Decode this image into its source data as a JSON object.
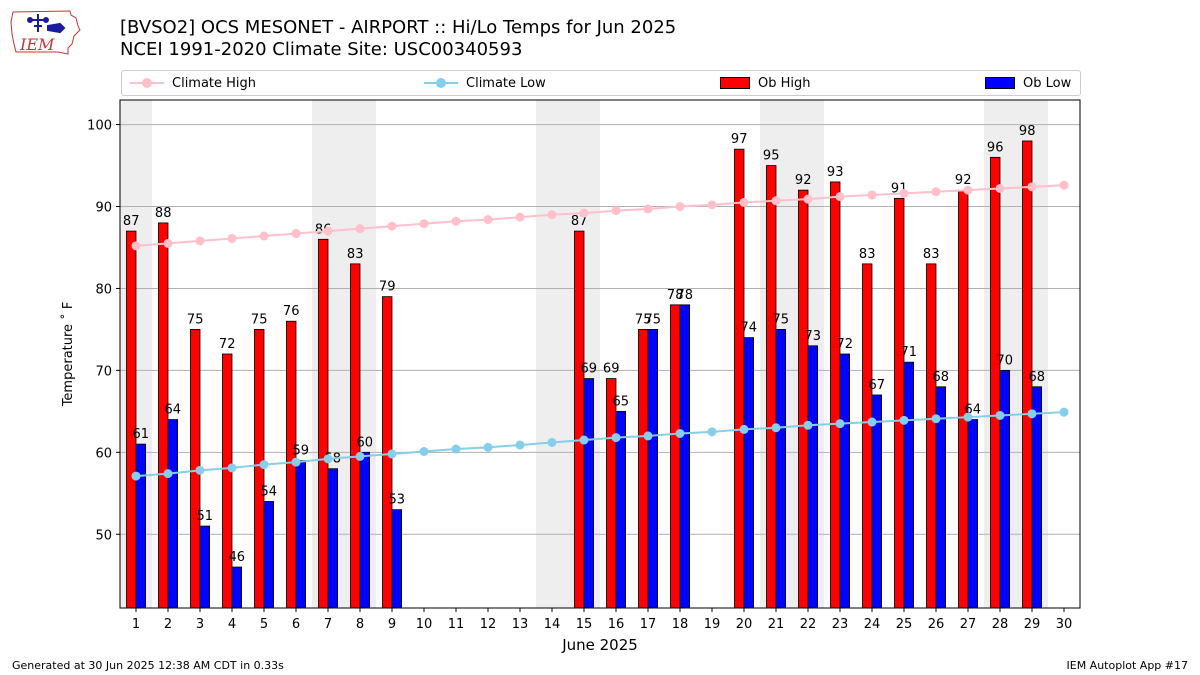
{
  "title_line1": "[BVSO2] OCS MESONET - AIRPORT :: Hi/Lo Temps for Jun 2025",
  "title_line2": "NCEI 1991-2020 Climate Site: USC00340593",
  "logo_text": "IEM",
  "footer_left": "Generated at 30 Jun 2025 12:38 AM CDT in 0.33s",
  "footer_right": "IEM Autoplot App #17",
  "colors": {
    "ob_high": "#ff0000",
    "ob_low": "#0000ff",
    "climate_high": "#ffc0cb",
    "climate_low": "#87ceeb",
    "weekend_shade": "#eeeeee",
    "grid": "#b0b0b0"
  },
  "chart_data": {
    "type": "bar",
    "xlabel": "June 2025",
    "ylabel": "Temperature ˚ F",
    "xlim": [
      0.5,
      30.5
    ],
    "ylim": [
      41,
      103
    ],
    "yticks": [
      50,
      60,
      70,
      80,
      90,
      100
    ],
    "grid": "horizontal",
    "legend_position": "top",
    "legend": [
      "Climate High",
      "Climate Low",
      "Ob High",
      "Ob Low"
    ],
    "days": [
      1,
      2,
      3,
      4,
      5,
      6,
      7,
      8,
      9,
      10,
      11,
      12,
      13,
      14,
      15,
      16,
      17,
      18,
      19,
      20,
      21,
      22,
      23,
      24,
      25,
      26,
      27,
      28,
      29,
      30
    ],
    "shaded_days": [
      1,
      7,
      8,
      14,
      15,
      21,
      22,
      28,
      29
    ],
    "ob_high": [
      87,
      88,
      75,
      72,
      75,
      76,
      86,
      83,
      79,
      null,
      null,
      null,
      null,
      null,
      87,
      69,
      75,
      78,
      null,
      97,
      95,
      92,
      93,
      83,
      91,
      83,
      92,
      96,
      98,
      null
    ],
    "ob_low": [
      61,
      64,
      51,
      46,
      54,
      59,
      58,
      60,
      53,
      null,
      null,
      null,
      null,
      null,
      69,
      65,
      75,
      78,
      null,
      74,
      75,
      73,
      72,
      67,
      71,
      68,
      64,
      70,
      68,
      null
    ],
    "ob_high_labels": [
      "87",
      "88",
      "75",
      "72",
      "75",
      "76",
      "86",
      "83",
      "79",
      "",
      "",
      "",
      "",
      "",
      "87",
      "69",
      "75",
      "78",
      "",
      "97",
      "95",
      "92",
      "93",
      "83",
      "91",
      "83",
      "92",
      "96",
      "98",
      ""
    ],
    "ob_low_labels": [
      "61",
      "64",
      "51",
      "46",
      "54",
      "59",
      "58",
      "60",
      "53",
      "",
      "",
      "",
      "",
      "",
      "69",
      "65",
      "75",
      "78",
      "",
      "74",
      "75",
      "73",
      "72",
      "67",
      "71",
      "68",
      "64",
      "70",
      "68",
      ""
    ],
    "climate_high": [
      85.2,
      85.5,
      85.8,
      86.1,
      86.4,
      86.7,
      87.0,
      87.3,
      87.6,
      87.9,
      88.2,
      88.4,
      88.7,
      89.0,
      89.2,
      89.5,
      89.7,
      90.0,
      90.2,
      90.5,
      90.7,
      90.9,
      91.2,
      91.4,
      91.6,
      91.8,
      92.0,
      92.2,
      92.4,
      92.6
    ],
    "climate_low": [
      57.1,
      57.4,
      57.8,
      58.1,
      58.5,
      58.8,
      59.2,
      59.5,
      59.8,
      60.1,
      60.4,
      60.6,
      60.9,
      61.2,
      61.5,
      61.8,
      62.0,
      62.3,
      62.5,
      62.8,
      63.0,
      63.3,
      63.5,
      63.7,
      63.9,
      64.1,
      64.3,
      64.5,
      64.7,
      64.9
    ]
  }
}
